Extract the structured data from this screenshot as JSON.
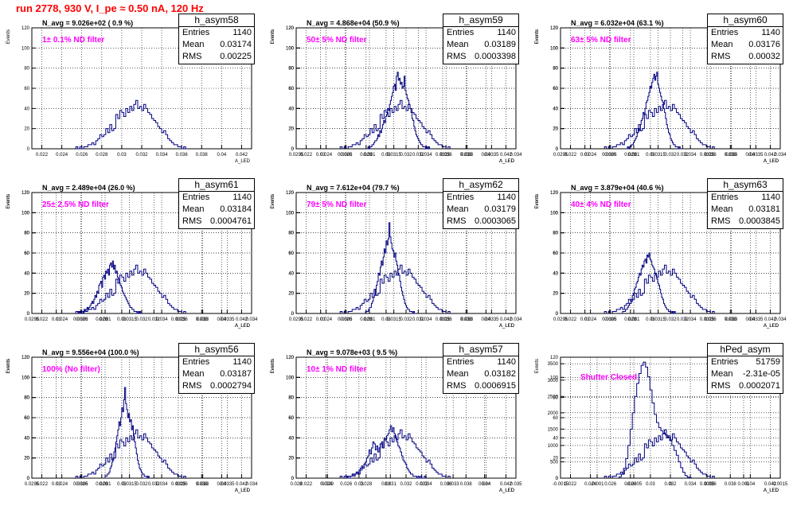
{
  "title": "run 2778,   930 V, I_pe ≈ 0.50 nA, 120 Hz",
  "colors": {
    "title": "#ff0000",
    "histogram": "#000080",
    "annotation": "#ff00ff"
  },
  "labels": {
    "stats_entries": "Entries",
    "stats_mean": "Mean",
    "stats_rms": "RMS"
  },
  "chart_data": [
    {
      "type": "histogram",
      "name": "h_asym58",
      "n_avg": "N_avg = 9.026e+02 ( 0.9 %)",
      "filter": "1± 0.1% ND filter",
      "entries": "1140",
      "mean": "0.03174",
      "rms": "0.00225",
      "xlim": [
        0.021,
        0.043
      ],
      "ylim": [
        0,
        120
      ],
      "xticks": [
        0.022,
        0.024,
        0.026,
        0.028,
        0.03,
        0.032,
        0.034,
        0.036,
        0.038,
        0.04,
        0.042
      ],
      "xtick_labels": [
        "0.022",
        "0.024",
        "0.026",
        "0.028",
        "0.03",
        "0.032",
        "0.034",
        "0.036",
        "0.038",
        "0.04",
        "0.042"
      ],
      "yticks": [
        0,
        20,
        40,
        60,
        80,
        100,
        120
      ],
      "ylabel": "Events",
      "xlabel": "A_LED",
      "bin_start": 0.0254,
      "bin_width": 0.0002,
      "counts": [
        2,
        0,
        2,
        0,
        2,
        2,
        4,
        4,
        6,
        4,
        8,
        10,
        14,
        12,
        14,
        20,
        16,
        24,
        18,
        20,
        34,
        30,
        38,
        36,
        32,
        40,
        36,
        42,
        38,
        44,
        48,
        40,
        42,
        38,
        44,
        40,
        36,
        34,
        30,
        28,
        26,
        22,
        20,
        16,
        18,
        14,
        10,
        8,
        6,
        4,
        4,
        2,
        2,
        0,
        2,
        0
      ]
    },
    {
      "type": "histogram",
      "name": "h_asym59",
      "n_avg": "N_avg = 4.868e+04 (50.9 %)",
      "filter": "50± 5% ND filter",
      "entries": "1140",
      "mean": "0.03189",
      "rms": "0.0003398",
      "xlim": [
        0.0295,
        0.034
      ],
      "ylim": [
        0,
        120
      ],
      "xticks": [
        0.0295,
        0.03,
        0.0305,
        0.031,
        0.0315,
        0.032,
        0.0325,
        0.033,
        0.0335,
        0.034
      ],
      "xtick_labels": [
        "0.0295",
        "0.03",
        "0.0305",
        "0.031",
        "0.0315",
        "0.032",
        "0.0325",
        "0.033",
        "0.0335",
        "0.034"
      ],
      "yticks": [
        0,
        20,
        40,
        60,
        80,
        100,
        120
      ],
      "ylabel": "Events",
      "xlabel": "A_LED",
      "bin_start": 0.03095,
      "bin_width": 2e-05,
      "counts": [
        0,
        2,
        0,
        2,
        2,
        4,
        4,
        6,
        8,
        8,
        10,
        14,
        12,
        18,
        16,
        20,
        24,
        28,
        26,
        32,
        34,
        40,
        38,
        44,
        48,
        52,
        56,
        62,
        64,
        58,
        72,
        76,
        68,
        70,
        64,
        66,
        60,
        62,
        72,
        58,
        54,
        50,
        48,
        44,
        40,
        36,
        30,
        28,
        22,
        18,
        14,
        12,
        10,
        8,
        6,
        4,
        4,
        2,
        2,
        2,
        0,
        2,
        0,
        2,
        0,
        0
      ]
    },
    {
      "type": "histogram",
      "name": "h_asym60",
      "n_avg": "N_avg = 6.032e+04 (63.1 %)",
      "filter": "63± 5% ND filter",
      "entries": "1140",
      "mean": "0.03176",
      "rms": "0.00032",
      "xlim": [
        0.0295,
        0.034
      ],
      "ylim": [
        0,
        120
      ],
      "xticks": [
        0.0295,
        0.03,
        0.0305,
        0.031,
        0.0315,
        0.032,
        0.0325,
        0.033,
        0.0335,
        0.034
      ],
      "xtick_labels": [
        "0.0295",
        "0.03",
        "0.0305",
        "0.031",
        "0.0315",
        "0.032",
        "0.0325",
        "0.033",
        "0.0335",
        "0.034"
      ],
      "yticks": [
        0,
        20,
        40,
        60,
        80,
        100,
        120
      ],
      "ylabel": "Events",
      "xlabel": "A_LED",
      "bin_start": 0.03085,
      "bin_width": 2e-05,
      "counts": [
        0,
        2,
        0,
        2,
        2,
        4,
        4,
        6,
        8,
        10,
        12,
        16,
        20,
        18,
        24,
        28,
        30,
        36,
        34,
        40,
        46,
        48,
        52,
        56,
        62,
        60,
        66,
        70,
        74,
        68,
        72,
        76,
        64,
        60,
        56,
        52,
        48,
        46,
        40,
        36,
        30,
        24,
        20,
        16,
        14,
        10,
        8,
        6,
        4,
        4,
        2,
        2,
        2,
        0,
        2,
        0
      ]
    },
    {
      "type": "histogram",
      "name": "h_asym61",
      "n_avg": "N_avg = 2.489e+04 (26.0 %)",
      "filter": "25± 2.5% ND filter",
      "entries": "1140",
      "mean": "0.03184",
      "rms": "0.0004761",
      "xlim": [
        0.0295,
        0.034
      ],
      "ylim": [
        0,
        120
      ],
      "xticks": [
        0.0295,
        0.03,
        0.0305,
        0.031,
        0.0315,
        0.032,
        0.0325,
        0.033,
        0.0335,
        0.034
      ],
      "xtick_labels": [
        "0.0295",
        "0.03",
        "0.0305",
        "0.031",
        "0.0315",
        "0.032",
        "0.0325",
        "0.033",
        "0.0335",
        "0.034"
      ],
      "yticks": [
        0,
        20,
        40,
        60,
        80,
        100,
        120
      ],
      "ylabel": "Events",
      "xlabel": "A_LED",
      "bin_start": 0.03045,
      "bin_width": 2e-05,
      "counts": [
        2,
        0,
        0,
        2,
        2,
        0,
        4,
        2,
        4,
        6,
        4,
        6,
        8,
        10,
        12,
        10,
        14,
        18,
        16,
        22,
        20,
        28,
        30,
        32,
        26,
        36,
        38,
        34,
        42,
        40,
        44,
        38,
        48,
        50,
        46,
        52,
        44,
        48,
        40,
        42,
        36,
        34,
        30,
        28,
        26,
        22,
        20,
        18,
        16,
        14,
        12,
        10,
        8,
        6,
        6,
        4,
        4,
        2,
        2,
        2,
        0,
        2,
        0,
        2,
        0
      ]
    },
    {
      "type": "histogram",
      "name": "h_asym62",
      "n_avg": "N_avg = 7.612e+04 (79.7 %)",
      "filter": "79± 5% ND filter",
      "entries": "1140",
      "mean": "0.03179",
      "rms": "0.0003065",
      "xlim": [
        0.0295,
        0.034
      ],
      "ylim": [
        0,
        120
      ],
      "xticks": [
        0.0295,
        0.03,
        0.0305,
        0.031,
        0.0315,
        0.032,
        0.0325,
        0.033,
        0.0335,
        0.034
      ],
      "xtick_labels": [
        "0.0295",
        "0.03",
        "0.0305",
        "0.031",
        "0.0315",
        "0.032",
        "0.0325",
        "0.033",
        "0.0335",
        "0.034"
      ],
      "yticks": [
        0,
        20,
        40,
        60,
        80,
        100,
        120
      ],
      "ylabel": "Events",
      "xlabel": "A_LED",
      "bin_start": 0.0309,
      "bin_width": 2e-05,
      "counts": [
        0,
        2,
        2,
        2,
        4,
        6,
        6,
        10,
        12,
        16,
        18,
        24,
        28,
        32,
        40,
        38,
        46,
        52,
        48,
        56,
        64,
        60,
        72,
        68,
        74,
        90,
        76,
        70,
        64,
        62,
        56,
        60,
        52,
        48,
        40,
        38,
        32,
        26,
        22,
        18,
        14,
        10,
        8,
        6,
        4,
        4,
        2,
        2,
        2,
        0,
        2,
        0
      ]
    },
    {
      "type": "histogram",
      "name": "h_asym63",
      "n_avg": "N_avg = 3.879e+04 (40.6 %)",
      "filter": "40± 4% ND filter",
      "entries": "1140",
      "mean": "0.03181",
      "rms": "0.0003845",
      "xlim": [
        0.0295,
        0.034
      ],
      "ylim": [
        0,
        120
      ],
      "xticks": [
        0.0295,
        0.03,
        0.0305,
        0.031,
        0.0315,
        0.032,
        0.0325,
        0.033,
        0.0335,
        0.034
      ],
      "xtick_labels": [
        "0.0295",
        "0.03",
        "0.0305",
        "0.031",
        "0.0315",
        "0.032",
        "0.0325",
        "0.033",
        "0.0335",
        "0.034"
      ],
      "yticks": [
        0,
        20,
        40,
        60,
        80,
        100,
        120
      ],
      "ylabel": "Events",
      "xlabel": "A_LED",
      "bin_start": 0.03075,
      "bin_width": 2e-05,
      "counts": [
        0,
        2,
        2,
        2,
        4,
        4,
        6,
        8,
        10,
        10,
        14,
        18,
        20,
        24,
        26,
        30,
        32,
        36,
        40,
        38,
        44,
        48,
        46,
        52,
        54,
        50,
        58,
        56,
        60,
        54,
        52,
        48,
        46,
        44,
        40,
        38,
        34,
        30,
        28,
        24,
        20,
        16,
        14,
        10,
        8,
        6,
        4,
        4,
        2,
        2,
        2,
        0,
        2,
        0,
        2
      ]
    },
    {
      "type": "histogram",
      "name": "h_asym56",
      "n_avg": "N_avg = 9.556e+04 (100.0 %)",
      "filter": "100% (No filter)",
      "entries": "1140",
      "mean": "0.03187",
      "rms": "0.0002794",
      "xlim": [
        0.0295,
        0.034
      ],
      "ylim": [
        0,
        120
      ],
      "xticks": [
        0.0295,
        0.03,
        0.0305,
        0.031,
        0.0315,
        0.032,
        0.0325,
        0.033,
        0.0335,
        0.034
      ],
      "xtick_labels": [
        "0.0295",
        "0.03",
        "0.0305",
        "0.031",
        "0.0315",
        "0.032",
        "0.0325",
        "0.033",
        "0.0335",
        "0.034"
      ],
      "yticks": [
        0,
        20,
        40,
        60,
        80,
        100,
        120
      ],
      "ylabel": "Events",
      "xlabel": "A_LED",
      "bin_start": 0.031,
      "bin_width": 2e-05,
      "counts": [
        2,
        2,
        4,
        4,
        6,
        10,
        12,
        16,
        20,
        26,
        30,
        36,
        42,
        48,
        56,
        52,
        60,
        70,
        66,
        78,
        90,
        74,
        68,
        60,
        64,
        56,
        58,
        48,
        52,
        42,
        36,
        30,
        24,
        18,
        14,
        10,
        8,
        6,
        4,
        4,
        2,
        2,
        2,
        0,
        2
      ]
    },
    {
      "type": "histogram",
      "name": "h_asym57",
      "n_avg": "N_avg = 9.078e+03 ( 9.5 %)",
      "filter": "10± 1% ND filter",
      "entries": "1140",
      "mean": "0.03182",
      "rms": "0.0006915",
      "xlim": [
        0.028,
        0.035
      ],
      "ylim": [
        0,
        120
      ],
      "xticks": [
        0.028,
        0.029,
        0.03,
        0.031,
        0.032,
        0.033,
        0.034,
        0.035
      ],
      "xtick_labels": [
        "0.028",
        "0.029",
        "0.03",
        "0.031",
        "0.032",
        "0.033",
        "0.034",
        "0.035"
      ],
      "yticks": [
        0,
        20,
        40,
        60,
        80,
        100,
        120
      ],
      "ylabel": "Events",
      "xlabel": "A_LED",
      "bin_start": 0.0296,
      "bin_width": 4e-05,
      "counts": [
        2,
        0,
        0,
        2,
        2,
        4,
        2,
        4,
        6,
        4,
        8,
        10,
        12,
        10,
        14,
        16,
        20,
        22,
        28,
        24,
        30,
        36,
        34,
        28,
        32,
        26,
        30,
        34,
        36,
        30,
        40,
        38,
        42,
        44,
        48,
        52,
        46,
        50,
        44,
        40,
        36,
        32,
        30,
        26,
        22,
        18,
        16,
        14,
        10,
        8,
        6,
        4,
        4,
        2,
        2,
        2,
        0,
        2,
        0,
        2,
        0,
        0,
        2
      ]
    },
    {
      "type": "histogram",
      "name": "hPed_asym",
      "n_avg": "",
      "filter": "Shutter Closed",
      "entries": "51759",
      "mean": "-2.31e-05",
      "rms": "0.0002071",
      "xlim": [
        -0.0015,
        0.0015
      ],
      "ylim": [
        0,
        3700
      ],
      "xticks": [
        -0.0015,
        -0.001,
        -0.0005,
        0,
        0.0005,
        0.001,
        0.0015
      ],
      "xtick_labels": [
        "-0.0015",
        "-0.001",
        "-0.0005",
        "0",
        "0.0005",
        "0.001",
        "0.0015"
      ],
      "yticks": [
        0,
        500,
        1000,
        1500,
        2000,
        2500,
        3000,
        3500
      ],
      "ylabel": "",
      "xlabel": "A_LED",
      "bin_start": -0.0007,
      "bin_width": 3e-05,
      "counts": [
        40,
        120,
        300,
        600,
        1000,
        1500,
        2000,
        2500,
        2900,
        3200,
        3450,
        3550,
        3400,
        3100,
        2700,
        2300,
        1950,
        1700,
        1550,
        1450,
        1380,
        1320,
        1250,
        1150,
        1000,
        850,
        700,
        500,
        320,
        180,
        80,
        30,
        10
      ]
    }
  ]
}
